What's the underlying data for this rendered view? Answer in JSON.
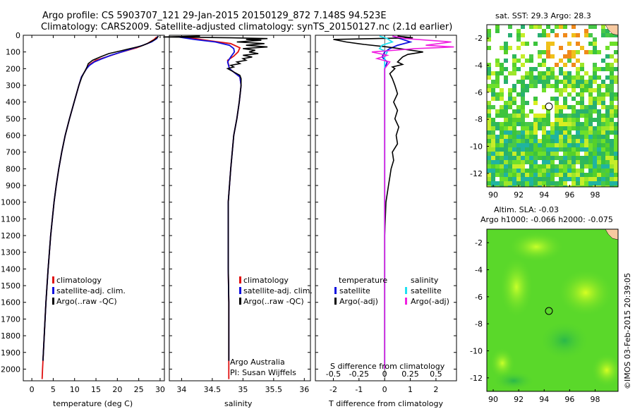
{
  "header": {
    "line1": "Argo profile: CS 5903707_121 29-Jan-2015 20150129_872 7.148S 94.523E",
    "line2": "Climatology: CARS2009. Satellite-adjusted climatology: synTS_20150127.nc (2.1d earlier)"
  },
  "credit": "©IMOS 03-Feb-2015 20:39:05",
  "colors": {
    "climatology": "#e01010",
    "satellite": "#1010e0",
    "argo": "#000000",
    "sat_salinity": "#20e0f0",
    "argo_salinity_adj": "#f020e0"
  },
  "depth_axis": {
    "ticks": [
      0,
      100,
      200,
      300,
      400,
      500,
      600,
      700,
      800,
      900,
      1000,
      1100,
      1200,
      1300,
      1400,
      1500,
      1600,
      1700,
      1800,
      1900,
      2000
    ],
    "range": [
      0,
      2070
    ]
  },
  "chart_data": [
    {
      "type": "line",
      "name": "temperature_profile",
      "xlabel": "temperature (deg C)",
      "xticks": [
        0,
        5,
        10,
        15,
        20,
        25,
        30
      ],
      "xlim": [
        -2,
        31
      ],
      "legend": [
        "climatology",
        "satellite-adj. clim.",
        "Argo(..raw -QC)"
      ],
      "legend_placement": "lower-center",
      "series": [
        {
          "key": "climatology",
          "depth": [
            10,
            25,
            50,
            75,
            100,
            125,
            150,
            175,
            200,
            250,
            300,
            400,
            500,
            600,
            700,
            800,
            900,
            1000,
            1200,
            1400,
            1600,
            1800,
            2000,
            2060
          ],
          "values": [
            29.2,
            28.6,
            27.0,
            24.5,
            21.0,
            18.0,
            15.0,
            13.5,
            12.8,
            11.6,
            11.0,
            9.9,
            8.8,
            7.8,
            7.0,
            6.3,
            5.7,
            5.2,
            4.4,
            3.8,
            3.3,
            2.9,
            2.5,
            2.4
          ]
        },
        {
          "key": "satellite",
          "depth": [
            5,
            20,
            40,
            60,
            80,
            100,
            120,
            140,
            160,
            180,
            200,
            250,
            300,
            400,
            500,
            600,
            700,
            800,
            900,
            1000,
            1200,
            1400,
            1600,
            1800,
            1950
          ],
          "values": [
            29.5,
            29.2,
            28.0,
            26.0,
            23.5,
            21.0,
            18.5,
            16.5,
            14.6,
            13.5,
            12.8,
            11.6,
            11.0,
            9.9,
            8.8,
            7.8,
            7.0,
            6.3,
            5.7,
            5.2,
            4.4,
            3.8,
            3.3,
            2.9,
            2.6
          ]
        },
        {
          "key": "argo",
          "depth": [
            5,
            15,
            30,
            50,
            65,
            80,
            95,
            110,
            130,
            150,
            170,
            190,
            210,
            250,
            300,
            400,
            500,
            600,
            700,
            800,
            900,
            1000,
            1200,
            1400,
            1600,
            1800,
            1950
          ],
          "values": [
            29.6,
            29.3,
            28.5,
            27.0,
            25.5,
            23.0,
            20.5,
            18.0,
            16.0,
            14.2,
            13.2,
            12.9,
            12.5,
            11.7,
            11.0,
            9.9,
            8.8,
            7.8,
            7.0,
            6.3,
            5.7,
            5.2,
            4.4,
            3.8,
            3.3,
            2.9,
            2.6
          ]
        }
      ]
    },
    {
      "type": "line",
      "name": "salinity_profile",
      "xlabel": "salinity",
      "xticks": [
        34,
        34.5,
        35,
        35.5,
        36
      ],
      "xlim": [
        33.8,
        36.1
      ],
      "legend": [
        "climatology",
        "satellite-adj. clim.",
        "Argo(..raw -QC)"
      ],
      "legend_placement": "lower-center",
      "annotation": [
        "Argo Australia",
        "PI: Susan Wijffels"
      ],
      "series": [
        {
          "key": "climatology",
          "depth": [
            10,
            30,
            50,
            75,
            100,
            125,
            150,
            200,
            250,
            300,
            400,
            500,
            600,
            800,
            1000,
            1200,
            1400,
            1600,
            1800,
            2000,
            2060
          ],
          "values": [
            34.05,
            34.4,
            34.8,
            34.95,
            34.92,
            34.85,
            34.75,
            34.78,
            34.95,
            34.97,
            34.94,
            34.9,
            34.85,
            34.8,
            34.76,
            34.76,
            34.76,
            34.77,
            34.77,
            34.77,
            34.77
          ]
        },
        {
          "key": "satellite",
          "depth": [
            10,
            25,
            40,
            60,
            80,
            100,
            130,
            160,
            200,
            250,
            300,
            400,
            500,
            600,
            800,
            1000,
            1200,
            1400,
            1600,
            1800,
            1950
          ],
          "values": [
            33.95,
            34.2,
            34.55,
            34.78,
            34.85,
            34.86,
            34.8,
            34.75,
            34.78,
            34.95,
            34.97,
            34.94,
            34.9,
            34.85,
            34.8,
            34.76,
            34.76,
            34.76,
            34.77,
            34.77,
            34.77
          ]
        },
        {
          "key": "argo",
          "depth": [
            5,
            10,
            15,
            20,
            25,
            30,
            40,
            50,
            60,
            70,
            80,
            90,
            100,
            110,
            120,
            130,
            140,
            150,
            160,
            170,
            180,
            190,
            200,
            210,
            220,
            240,
            260,
            300,
            400,
            500,
            600,
            800,
            1000,
            1200,
            1400,
            1600,
            1800,
            1950
          ],
          "values": [
            34.3,
            33.7,
            34.8,
            35.4,
            35.05,
            35.3,
            34.9,
            35.35,
            35.05,
            35.4,
            35.0,
            35.2,
            35.1,
            35.25,
            35.0,
            35.15,
            35.0,
            35.05,
            34.9,
            34.95,
            34.8,
            34.85,
            34.75,
            34.8,
            34.85,
            34.95,
            34.97,
            34.97,
            34.94,
            34.9,
            34.85,
            34.8,
            34.76,
            34.76,
            34.76,
            34.77,
            34.77,
            34.77
          ]
        }
      ]
    },
    {
      "type": "line",
      "name": "difference_profile",
      "xlabel": "T difference from climatology",
      "xticks": [
        -2,
        -1,
        0,
        1,
        2
      ],
      "xlim": [
        -2.7,
        2.8
      ],
      "xlabel_top": "S difference from climatology",
      "xticks_top": [
        "-0.5",
        "-0.25",
        "0",
        "0.25",
        "0.5"
      ],
      "xticks_top_pos": [
        -2,
        -1,
        0,
        1,
        2
      ],
      "legend_left_title": "temperature",
      "legend_right_title": "salinity",
      "legend": [
        "satellite",
        "Argo(-adj)",
        "satellite",
        "Argo(-adj)"
      ],
      "legend_placement": "lower-center",
      "series": [
        {
          "key": "sat_T",
          "depth": [
            5,
            20,
            40,
            60,
            80,
            100,
            130,
            160,
            200,
            300,
            400,
            600,
            800,
            1000,
            1400,
            1800,
            2000
          ],
          "values": [
            0.3,
            0.6,
            1.0,
            0.5,
            0.2,
            0.0,
            -0.1,
            0.1,
            0.0,
            0.0,
            0.0,
            0.0,
            0.0,
            0.0,
            0.0,
            0.0,
            0.0
          ]
        },
        {
          "key": "argo_T",
          "depth": [
            5,
            15,
            25,
            40,
            55,
            70,
            85,
            100,
            115,
            130,
            145,
            160,
            175,
            190,
            200,
            230,
            260,
            300,
            350,
            400,
            450,
            500,
            550,
            600,
            650,
            700,
            750,
            800,
            850,
            900,
            1000,
            1200,
            1400,
            1600,
            1800,
            2000
          ],
          "values": [
            0.5,
            1.1,
            -2.0,
            -1.5,
            -0.8,
            0.1,
            0.8,
            1.5,
            0.9,
            0.7,
            0.6,
            0.5,
            0.7,
            0.3,
            0.4,
            0.2,
            0.3,
            0.4,
            0.5,
            0.35,
            0.5,
            0.4,
            0.55,
            0.45,
            0.5,
            0.3,
            0.35,
            0.25,
            0.2,
            0.15,
            0.05,
            0.0,
            0.0,
            0.0,
            0.0,
            0.0
          ]
        },
        {
          "key": "sat_S",
          "depth": [
            5,
            20,
            40,
            60,
            80,
            100,
            130,
            160,
            200,
            300,
            400,
            600,
            800,
            1000,
            1400,
            1800,
            2000
          ],
          "values": [
            -0.2,
            0.1,
            0.3,
            -0.1,
            -0.2,
            0.1,
            0.0,
            0.0,
            0.0,
            0.0,
            0.0,
            0.0,
            0.0,
            0.0,
            0.0,
            0.0,
            0.0
          ]
        },
        {
          "key": "argo_S",
          "depth": [
            5,
            20,
            40,
            60,
            70,
            80,
            100,
            120,
            140,
            160,
            200,
            300,
            600,
            900,
            1200,
            1600,
            2000
          ],
          "values": [
            0.3,
            0.8,
            2.6,
            1.6,
            2.7,
            1.2,
            -0.5,
            0.1,
            -0.3,
            0.2,
            0.0,
            0.0,
            0.0,
            0.0,
            0.0,
            0.0,
            0.0
          ]
        }
      ]
    },
    {
      "type": "heatmap",
      "name": "sst_map",
      "title": "sat. SST: 29.3  Argo: 28.3",
      "xticks": [
        90,
        92,
        94,
        96,
        98
      ],
      "yticks": [
        -2,
        -4,
        -6,
        -8,
        -10,
        -12
      ],
      "xlim": [
        89.5,
        99.8
      ],
      "ylim": [
        -13,
        -1
      ],
      "argo_position": {
        "lon": 94.5,
        "lat": -7.2
      }
    },
    {
      "type": "heatmap",
      "name": "sla_map",
      "title": "Altim. SLA: -0.03",
      "subtitle": "Argo h1000: -0.066 h2000: -0.075",
      "xticks": [
        90,
        92,
        94,
        96,
        98
      ],
      "yticks": [
        -2,
        -4,
        -6,
        -8,
        -10,
        -12
      ],
      "xlim": [
        89.5,
        99.8
      ],
      "ylim": [
        -13,
        -1
      ],
      "argo_position": {
        "lon": 94.5,
        "lat": -7.2
      }
    }
  ]
}
